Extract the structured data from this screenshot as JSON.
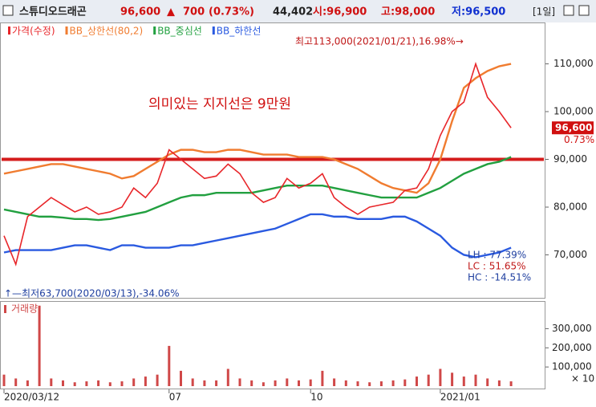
{
  "header": {
    "name": "스튜디오드래곤",
    "price": "96,600",
    "arrow": "▲",
    "change": "700",
    "change_pct": "(0.73%)",
    "volume": "44,402",
    "open": "시:96,900",
    "high": "고:98,000",
    "low": "저:96,500",
    "period": "[1일]"
  },
  "chart_data": {
    "type": "line",
    "categories": [
      "2020/03/12",
      null,
      null,
      null,
      null,
      null,
      null,
      null,
      null,
      null,
      null,
      null,
      null,
      null,
      "07",
      null,
      null,
      null,
      null,
      null,
      null,
      null,
      null,
      null,
      null,
      null,
      "10",
      null,
      null,
      null,
      null,
      null,
      null,
      null,
      null,
      null,
      null,
      "2021/01",
      null,
      null,
      null,
      null,
      null,
      null
    ],
    "series": [
      {
        "name": "가격(수정)",
        "color": "#e8262a",
        "values": [
          74000,
          68000,
          78000,
          80000,
          82000,
          80500,
          79000,
          80000,
          78500,
          79000,
          80000,
          84000,
          82000,
          85000,
          92000,
          90000,
          88000,
          86000,
          86500,
          89000,
          87000,
          83000,
          81000,
          82000,
          86000,
          84000,
          85000,
          87000,
          82000,
          80000,
          78500,
          80000,
          80500,
          81000,
          83500,
          84000,
          88000,
          95000,
          100000,
          102000,
          110000,
          103000,
          100000,
          96600
        ]
      },
      {
        "name": "BB_상한선(80,2)",
        "color": "#f07c30",
        "values": [
          87000,
          87500,
          88000,
          88500,
          89000,
          89000,
          88500,
          88000,
          87500,
          87000,
          86000,
          86500,
          88000,
          89500,
          91000,
          92000,
          92000,
          91500,
          91500,
          92000,
          92000,
          91500,
          91000,
          91000,
          91000,
          90500,
          90500,
          90500,
          90000,
          89000,
          88000,
          86500,
          85000,
          84000,
          83500,
          83000,
          85000,
          90000,
          98000,
          105000,
          107000,
          108500,
          109500,
          110000
        ]
      },
      {
        "name": "BB_중심선",
        "color": "#22a040",
        "values": [
          79500,
          79000,
          78500,
          78000,
          78000,
          77800,
          77500,
          77500,
          77300,
          77500,
          78000,
          78500,
          79000,
          80000,
          81000,
          82000,
          82500,
          82500,
          83000,
          83000,
          83000,
          83000,
          83500,
          84000,
          84500,
          84500,
          84500,
          84500,
          84000,
          83500,
          83000,
          82500,
          82000,
          82000,
          82000,
          82000,
          83000,
          84000,
          85500,
          87000,
          88000,
          89000,
          89500,
          90500
        ]
      },
      {
        "name": "BB_하한선",
        "color": "#2a5ae0",
        "values": [
          70500,
          71000,
          71000,
          71000,
          71000,
          71500,
          72000,
          72000,
          71500,
          71000,
          72000,
          72000,
          71500,
          71500,
          71500,
          72000,
          72000,
          72500,
          73000,
          73500,
          74000,
          74500,
          75000,
          75500,
          76500,
          77500,
          78500,
          78500,
          78000,
          78000,
          77500,
          77500,
          77500,
          78000,
          78000,
          77000,
          75500,
          74000,
          71500,
          70000,
          69500,
          70000,
          70500,
          71500
        ]
      }
    ],
    "ylim": [
      61000,
      118500
    ],
    "yticks": [
      {
        "value": 70000,
        "label": "70,000"
      },
      {
        "value": 80000,
        "label": "80,000"
      },
      {
        "value": 90000,
        "label": "90,000"
      },
      {
        "value": 100000,
        "label": "100,000"
      },
      {
        "value": 110000,
        "label": "110,000"
      }
    ],
    "support_line": {
      "value": 90000,
      "color": "#d41c1c"
    },
    "last_price": {
      "value": 96600,
      "label": "96,600"
    },
    "last_change": "0.73%",
    "annotations": [
      "최고113,000(2021/01/21),16.98%→",
      "의미있는 지지선은 9만원",
      "↑—최저63,700(2020/03/13),-34.06%",
      "LH : 77.39%",
      "LC : 51.65%",
      "HC : -14.51%"
    ],
    "volume": {
      "title": "거래량",
      "color": "#d04848",
      "unit": "× 10",
      "values": [
        60000,
        40000,
        30000,
        420000,
        40000,
        30000,
        20000,
        25000,
        30000,
        20000,
        25000,
        40000,
        50000,
        60000,
        210000,
        80000,
        40000,
        30000,
        30000,
        90000,
        40000,
        30000,
        20000,
        30000,
        40000,
        30000,
        35000,
        80000,
        40000,
        30000,
        25000,
        20000,
        25000,
        30000,
        35000,
        50000,
        60000,
        90000,
        70000,
        50000,
        60000,
        40000,
        30000,
        25000
      ],
      "ylim": [
        0,
        440000
      ],
      "yticks": [
        {
          "value": 100000,
          "label": "100,000"
        },
        {
          "value": 200000,
          "label": "200,000"
        },
        {
          "value": 300000,
          "label": "300,000"
        }
      ]
    }
  }
}
